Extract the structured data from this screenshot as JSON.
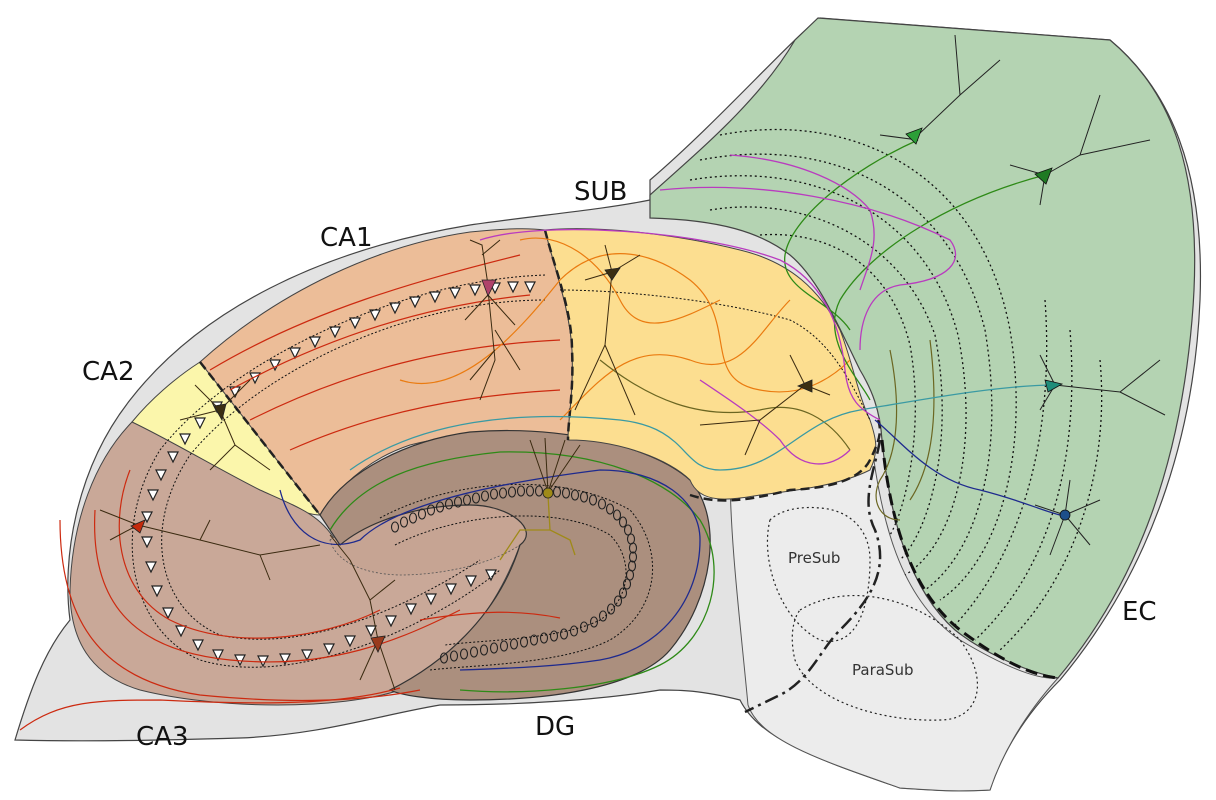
{
  "labels": {
    "ca1": "CA1",
    "ca2": "CA2",
    "ca3": "CA3",
    "sub": "SUB",
    "dg": "DG",
    "ec": "EC",
    "presub": "PreSub",
    "parasub": "ParaSub"
  },
  "colors": {
    "background": "#ffffff",
    "outer_tissue": "#e3e3e3",
    "ca1": "#ecbd98",
    "ca2": "#fbf6ab",
    "ca3": "#c9a898",
    "dg": "#ab8f7e",
    "sub": "#fcde90",
    "ec": "#b4d3b2",
    "presub_area": "#ececec",
    "red_fiber": "#cc2a10",
    "orange_fiber": "#ea7b10",
    "green_fiber": "#2e8a17",
    "olive_fiber": "#6b6622",
    "teal_fiber": "#3a9aa3",
    "blue_fiber": "#1e2a8e",
    "magenta_fiber": "#b93bbf",
    "neuron_body": "#3b2e12"
  },
  "neurons": [
    {
      "name": "ec-neuron-1",
      "icon": "pyramidal-neuron-icon",
      "color": "#2c9f38"
    },
    {
      "name": "ec-neuron-2",
      "icon": "pyramidal-neuron-icon",
      "color": "#1f7a23"
    },
    {
      "name": "ec-neuron-3",
      "icon": "pyramidal-neuron-icon",
      "color": "#1f8e7a"
    },
    {
      "name": "ec-neuron-4",
      "icon": "stellate-neuron-icon",
      "color": "#1d4f8a"
    },
    {
      "name": "ca1-neuron",
      "icon": "pyramidal-neuron-icon",
      "color": "#b0436b"
    },
    {
      "name": "ca3-neuron-1",
      "icon": "pyramidal-neuron-icon",
      "color": "#c42a0c"
    },
    {
      "name": "ca3-neuron-2",
      "icon": "pyramidal-neuron-icon",
      "color": "#9a3a1c"
    },
    {
      "name": "dg-granule-neuron",
      "icon": "granule-cell-icon",
      "color": "#9f8a18"
    }
  ]
}
